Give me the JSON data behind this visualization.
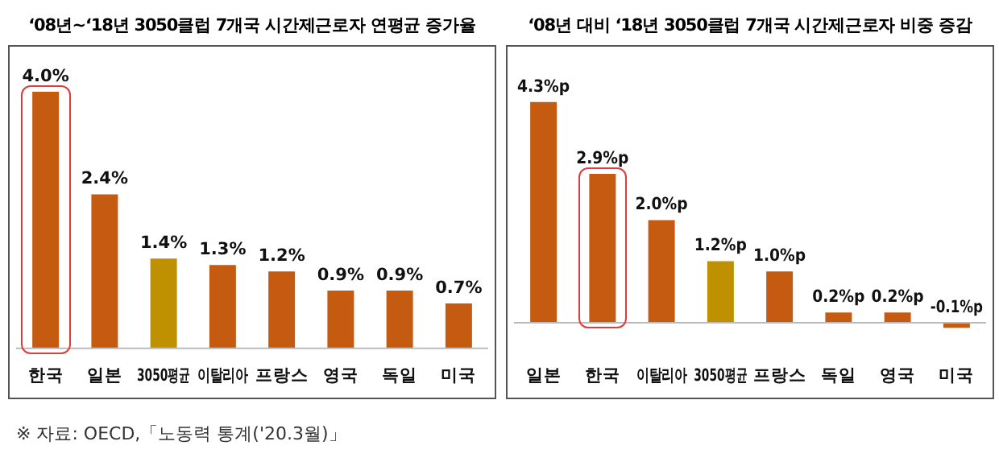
{
  "chart_data": [
    {
      "type": "bar",
      "title": "‘08년~‘18년 3050클럽 7개국 시간제근로자 연평균 증가율",
      "categories": [
        "한국",
        "일본",
        "3050평균",
        "이탈리아",
        "프랑스",
        "영국",
        "독일",
        "미국"
      ],
      "values": [
        4.0,
        2.4,
        1.4,
        1.3,
        1.2,
        0.9,
        0.9,
        0.7
      ],
      "value_labels": [
        "4.0%",
        "2.4%",
        "1.4%",
        "1.3%",
        "1.2%",
        "0.9%",
        "0.9%",
        "0.7%"
      ],
      "colors": [
        "#c55a11",
        "#c55a11",
        "#bf9000",
        "#c55a11",
        "#c55a11",
        "#c55a11",
        "#c55a11",
        "#c55a11"
      ],
      "annotations": [
        "※ 자료: OECD,「노동력 통계('20.3월)」"
      ]
    },
    {
      "type": "bar",
      "title": "‘08년 대비 ‘18년 3050클럽 7개국 시간제근로자 비중 증감",
      "categories": [
        "일본",
        "한국",
        "이탈리아",
        "3050평균",
        "프랑스",
        "독일",
        "영국",
        "미국"
      ],
      "values": [
        4.3,
        2.9,
        2.0,
        1.2,
        1.0,
        0.2,
        0.2,
        -0.1
      ],
      "value_labels": [
        "4.3%p",
        "2.9%p",
        "2.0%p",
        "1.2%p",
        "1.0%p",
        "0.2%p",
        "0.2%p",
        "-0.1%p"
      ],
      "colors": [
        "#c55a11",
        "#c55a11",
        "#c55a11",
        "#bf9000",
        "#c55a11",
        "#c55a11",
        "#c55a11",
        "#c55a11"
      ]
    }
  ]
}
